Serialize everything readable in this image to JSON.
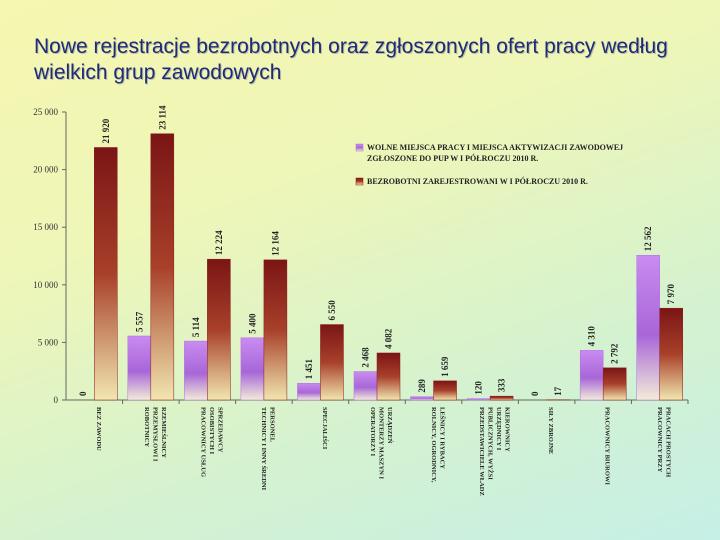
{
  "title": "Nowe rejestracje bezrobotnych oraz zgłoszonych ofert pracy według wielkich grup zawodowych",
  "colors": {
    "offers": "#b070e0",
    "unemployed": "#8c1a1a"
  },
  "chart_data": {
    "type": "bar",
    "title": "Nowe rejestracje bezrobotnych oraz zgłoszonych ofert pracy według wielkich grup zawodowych",
    "ylim": [
      0,
      25000
    ],
    "yticks": [
      0,
      5000,
      10000,
      15000,
      20000,
      25000
    ],
    "ytick_labels": [
      "0",
      "5 000",
      "10 000",
      "15 000",
      "20 000",
      "25 000"
    ],
    "legend_position": "top-right",
    "grid": false,
    "categories": [
      [
        "BEZ ZAWODU"
      ],
      [
        "ROBOTNICY",
        "PRZEMYSŁOWI I",
        "RZEMIEŚLNICY"
      ],
      [
        "PRACOWNICY USŁUG",
        "OSOBISTYCH I",
        "SPRZEDAWCY"
      ],
      [
        "TECHNICY I INNY ŚREDNI",
        "PERSONEL"
      ],
      [
        "SPECJALIŚCI"
      ],
      [
        "OPERATORZY I",
        "MONTERZY MASZYN I",
        "URZĄDZEŃ"
      ],
      [
        "ROLNICY, OGRODNICY,",
        "LEŚNICY I RYBACY"
      ],
      [
        "PRZEDSTAWICIELE WŁADZ",
        "PUBLICZNYCH, WYŻSI",
        "URZĘDNICY I",
        "KIEROWNICY"
      ],
      [
        "SIŁY ZBROJNE"
      ],
      [
        "PRACOWNICY BIUROWI"
      ],
      [
        "PRACOWNICY PRZY",
        "PRACACH PROSTYCH"
      ]
    ],
    "series": [
      {
        "name": "WOLNE MIEJSCA PRACY I MIEJSCA AKTYWIZACJI ZAWODOWEJ ZGŁOSZONE DO PUP W I PÓŁROCZU 2010 R.",
        "values": [
          0,
          5557,
          5114,
          5400,
          1451,
          2468,
          289,
          120,
          0,
          4310,
          12562
        ],
        "labels": [
          "0",
          "5 557",
          "5 114",
          "5 400",
          "1 451",
          "2 468",
          "289",
          "120",
          "0",
          "4 310",
          "12 562"
        ]
      },
      {
        "name": "BEZROBOTNI ZAREJESTROWANI W I PÓŁROCZU 2010 R.",
        "values": [
          21920,
          23114,
          12224,
          12164,
          6550,
          4082,
          1659,
          333,
          17,
          2792,
          7970
        ],
        "labels": [
          "21 920",
          "23 114",
          "12 224",
          "12 164",
          "6 550",
          "4 082",
          "1 659",
          "333",
          "17",
          "2 792",
          "7 970"
        ]
      }
    ]
  }
}
